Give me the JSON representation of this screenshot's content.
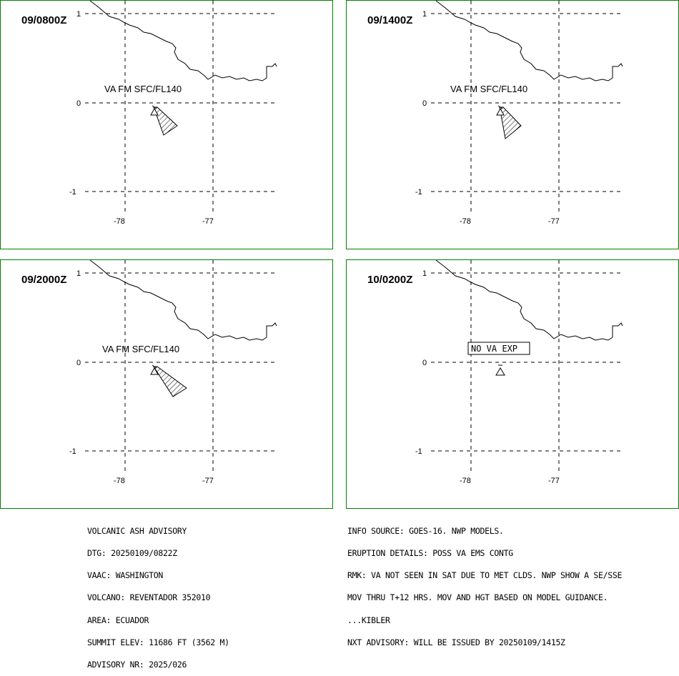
{
  "panels": [
    {
      "time": "09/0800Z",
      "label": "VA FM SFC/FL140",
      "cloud": "plume1"
    },
    {
      "time": "09/1400Z",
      "label": "VA FM SFC/FL140",
      "cloud": "plume2"
    },
    {
      "time": "09/2000Z",
      "label": "VA FM SFC/FL140",
      "cloud": "plume3"
    },
    {
      "time": "10/0200Z",
      "label": "NO VA EXP",
      "cloud": "none"
    }
  ],
  "axes": {
    "lat_ticks": [
      "1",
      "0",
      "-1"
    ],
    "lon_ticks": [
      "-78",
      "-77"
    ]
  },
  "advisory_left": [
    "VOLCANIC ASH ADVISORY",
    "DTG: 20250109/0822Z",
    "VAAC: WASHINGTON",
    "VOLCANO: REVENTADOR 352010",
    "AREA: ECUADOR",
    "SUMMIT ELEV: 11686 FT (3562 M)",
    "ADVISORY NR: 2025/026"
  ],
  "advisory_right": [
    "INFO SOURCE: GOES-16. NWP MODELS.",
    "ERUPTION DETAILS: POSS VA EMS CONTG",
    "RMK: VA NOT SEEN IN SAT DUE TO MET CLDS. NWP SHOW A SE/SSE",
    "MOV THRU T+12 HRS. MOV AND HGT BASED ON MODEL GUIDANCE.",
    "...KIBLER",
    "NXT ADVISORY: WILL BE ISSUED BY 20250109/1415Z"
  ],
  "colors": {
    "frame": "#008000",
    "ink": "#000000"
  }
}
